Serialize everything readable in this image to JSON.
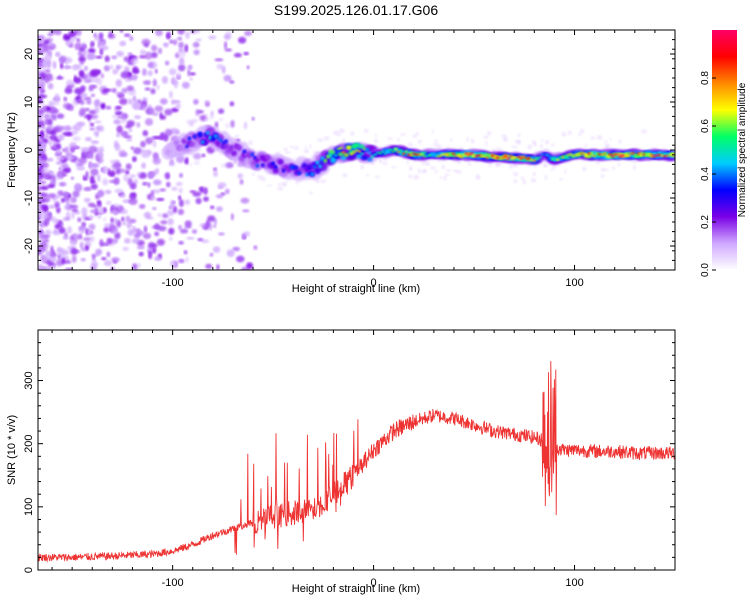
{
  "title": "S199.2025.126.01.17.G06",
  "colors": {
    "snr_line": "#ee3333",
    "frame": "#000000",
    "background": "#ffffff"
  },
  "chart_data": [
    {
      "type": "heatmap",
      "xlabel": "Height of straight line (km)",
      "ylabel": "Frequency (Hz)",
      "xlim": [
        -167,
        150
      ],
      "ylim": [
        -25,
        25
      ],
      "x_ticks": [
        -100,
        0,
        100
      ],
      "y_ticks": [
        -20,
        -10,
        0,
        10,
        20
      ],
      "colorbar": {
        "label": "Normalized spectral amplitude",
        "range": [
          0,
          1
        ],
        "ticks": [
          "0.0",
          "0.2",
          "0.4",
          "0.6",
          "0.8"
        ],
        "colormap": [
          "#ffffff",
          "#cfa8ff",
          "#7a00e6",
          "#0000ff",
          "#00ccff",
          "#00ff66",
          "#ffff00",
          "#ff8800",
          "#ff0000",
          "#ff0066"
        ]
      },
      "ridge": {
        "x": [
          -100,
          -90,
          -80,
          -70,
          -60,
          -50,
          -40,
          -30,
          -20,
          -10,
          0,
          10,
          20,
          30,
          40,
          50,
          60,
          70,
          80,
          85,
          90,
          100,
          110,
          120,
          130,
          140,
          150
        ],
        "frequency": [
          0,
          2,
          3,
          0,
          -2,
          -3,
          -4,
          -4,
          -1,
          0,
          -1,
          0,
          -1,
          -1,
          -1,
          -1,
          -1.5,
          -1.5,
          -2,
          -1,
          -2,
          -1,
          -1,
          -1,
          -1,
          -1,
          -1
        ],
        "amplitude": [
          0.15,
          0.3,
          0.4,
          0.25,
          0.3,
          0.3,
          0.3,
          0.35,
          0.6,
          0.8,
          0.4,
          0.6,
          0.8,
          0.5,
          0.8,
          0.85,
          0.8,
          0.85,
          0.7,
          0.3,
          0.6,
          0.7,
          0.8,
          0.85,
          0.8,
          0.8,
          0.8
        ]
      }
    },
    {
      "type": "line",
      "xlabel": "Height of straight line (km)",
      "ylabel": "SNR (10 * v/v)",
      "xlim": [
        -167,
        150
      ],
      "ylim": [
        0,
        380
      ],
      "x_ticks": [
        -100,
        0,
        100
      ],
      "y_ticks": [
        0,
        100,
        200,
        300
      ],
      "series": [
        {
          "x": [
            -167,
            -150,
            -130,
            -110,
            -100,
            -90,
            -80,
            -70,
            -60,
            -50,
            -40,
            -30,
            -20,
            -10,
            -5,
            0,
            5,
            10,
            20,
            30,
            40,
            50,
            60,
            70,
            80,
            85,
            88,
            90,
            95,
            100,
            110,
            120,
            130,
            140,
            150
          ],
          "values": [
            20,
            20,
            22,
            25,
            30,
            40,
            55,
            65,
            75,
            85,
            90,
            95,
            120,
            150,
            170,
            190,
            205,
            220,
            235,
            245,
            240,
            230,
            220,
            215,
            210,
            205,
            200,
            195,
            190,
            190,
            188,
            188,
            185,
            185,
            185
          ]
        }
      ]
    }
  ]
}
